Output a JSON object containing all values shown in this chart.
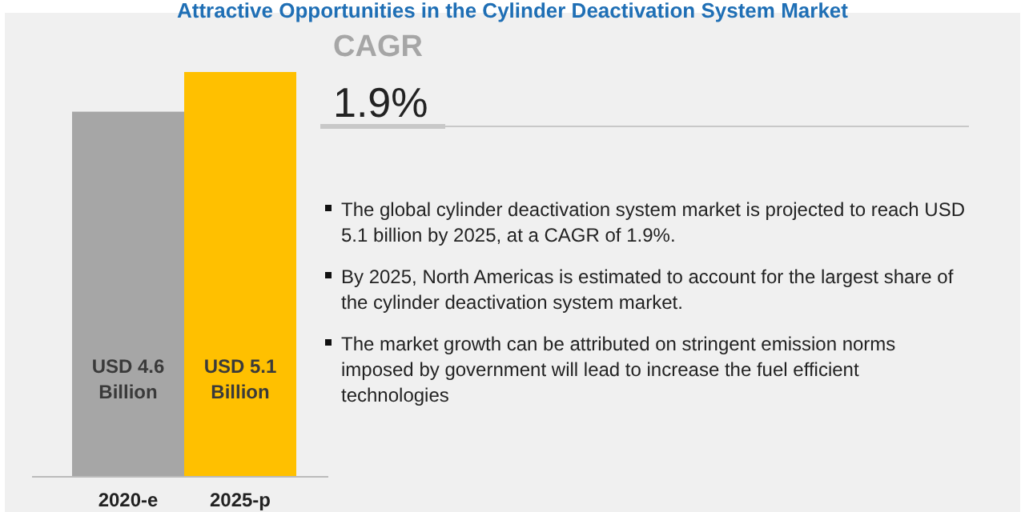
{
  "chart_data": {
    "type": "bar",
    "title": "Attractive Opportunities in the Cylinder Deactivation System Market",
    "categories": [
      "2020-e",
      "2025-p"
    ],
    "values": [
      4.6,
      5.1
    ],
    "colors": [
      "#a6a6a6",
      "#ffc000"
    ],
    "value_labels": [
      "USD 4.6 Billion",
      "USD 5.1 Billion"
    ],
    "annotations": [
      "CAGR",
      "1.9%",
      "The global cylinder deactivation system market is projected to reach USD 5.1 billion by 2025, at a CAGR of 1.9%.",
      "By 2025, North Americas is estimated to account for the largest share of the cylinder deactivation system market.",
      "The market growth can be attributed on stringent emission norms imposed by government will lead to increase the fuel efficient technologies"
    ]
  }
}
